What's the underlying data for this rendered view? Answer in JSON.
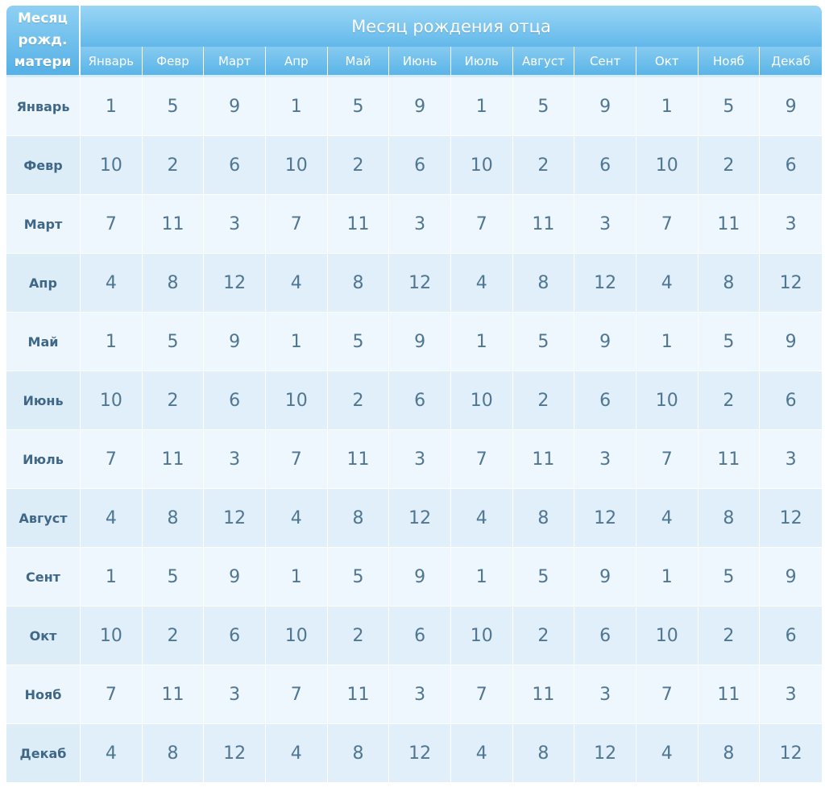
{
  "corner_label": [
    "Месяц",
    "рожд.",
    "матери"
  ],
  "title": "Месяц рождения отца",
  "columns": [
    "Январь",
    "Февр",
    "Март",
    "Апр",
    "Май",
    "Июнь",
    "Июль",
    "Август",
    "Сент",
    "Окт",
    "Нояб",
    "Декаб"
  ],
  "rows": [
    {
      "label": "Январь",
      "values": [
        "1",
        "5",
        "9",
        "1",
        "5",
        "9",
        "1",
        "5",
        "9",
        "1",
        "5",
        "9"
      ]
    },
    {
      "label": "Февр",
      "values": [
        "10",
        "2",
        "6",
        "10",
        "2",
        "6",
        "10",
        "2",
        "6",
        "10",
        "2",
        "6"
      ]
    },
    {
      "label": "Март",
      "values": [
        "7",
        "11",
        "3",
        "7",
        "11",
        "3",
        "7",
        "11",
        "3",
        "7",
        "11",
        "3"
      ]
    },
    {
      "label": "Апр",
      "values": [
        "4",
        "8",
        "12",
        "4",
        "8",
        "12",
        "4",
        "8",
        "12",
        "4",
        "8",
        "12"
      ]
    },
    {
      "label": "Май",
      "values": [
        "1",
        "5",
        "9",
        "1",
        "5",
        "9",
        "1",
        "5",
        "9",
        "1",
        "5",
        "9"
      ]
    },
    {
      "label": "Июнь",
      "values": [
        "10",
        "2",
        "6",
        "10",
        "2",
        "6",
        "10",
        "2",
        "6",
        "10",
        "2",
        "6"
      ]
    },
    {
      "label": "Июль",
      "values": [
        "7",
        "11",
        "3",
        "7",
        "11",
        "3",
        "7",
        "11",
        "3",
        "7",
        "11",
        "3"
      ]
    },
    {
      "label": "Август",
      "values": [
        "4",
        "8",
        "12",
        "4",
        "8",
        "12",
        "4",
        "8",
        "12",
        "4",
        "8",
        "12"
      ]
    },
    {
      "label": "Сент",
      "values": [
        "1",
        "5",
        "9",
        "1",
        "5",
        "9",
        "1",
        "5",
        "9",
        "1",
        "5",
        "9"
      ]
    },
    {
      "label": "Окт",
      "values": [
        "10",
        "2",
        "6",
        "10",
        "2",
        "6",
        "10",
        "2",
        "6",
        "10",
        "2",
        "6"
      ]
    },
    {
      "label": "Нояб",
      "values": [
        "7",
        "11",
        "3",
        "7",
        "11",
        "3",
        "7",
        "11",
        "3",
        "7",
        "11",
        "3"
      ]
    },
    {
      "label": "Декаб",
      "values": [
        "4",
        "8",
        "12",
        "4",
        "8",
        "12",
        "4",
        "8",
        "12",
        "4",
        "8",
        "12"
      ]
    }
  ],
  "colors": {
    "header_blue": "#5ab4e7",
    "row_light": "#eef7fd",
    "row_dark": "#e0eff9",
    "text": "#4f7692"
  }
}
